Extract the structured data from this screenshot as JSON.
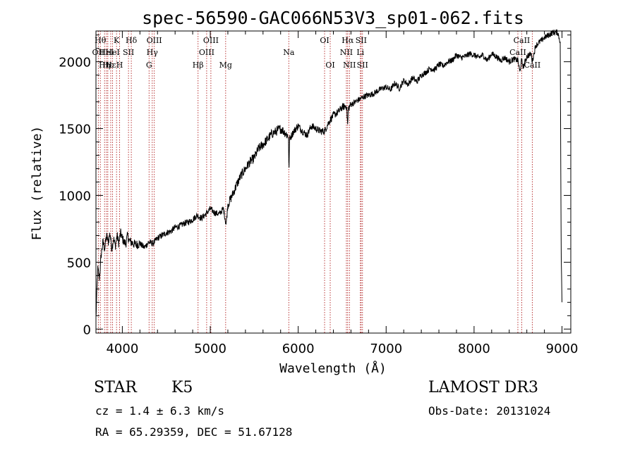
{
  "chart_data": {
    "type": "line",
    "title": "spec-56590-GAC066N53V3_sp01-062.fits",
    "xlabel": "Wavelength (Å)",
    "ylabel": "Flux (relative)",
    "xlim": [
      3700,
      9100
    ],
    "ylim": [
      -30,
      2230
    ],
    "xticks": [
      4000,
      5000,
      6000,
      7000,
      8000,
      9000
    ],
    "yticks": [
      0,
      500,
      1000,
      1500,
      2000
    ],
    "series": [
      {
        "name": "flux",
        "x": [
          3700,
          3720,
          3740,
          3760,
          3780,
          3800,
          3820,
          3840,
          3860,
          3880,
          3900,
          3920,
          3940,
          3960,
          3980,
          4000,
          4020,
          4040,
          4060,
          4080,
          4100,
          4150,
          4200,
          4250,
          4300,
          4350,
          4400,
          4450,
          4500,
          4550,
          4600,
          4650,
          4700,
          4750,
          4800,
          4850,
          4900,
          4950,
          5000,
          5050,
          5100,
          5150,
          5180,
          5200,
          5250,
          5300,
          5350,
          5400,
          5450,
          5500,
          5550,
          5600,
          5650,
          5700,
          5750,
          5800,
          5850,
          5890,
          5895,
          5900,
          5950,
          6000,
          6050,
          6100,
          6150,
          6200,
          6250,
          6300,
          6350,
          6400,
          6450,
          6500,
          6550,
          6563,
          6570,
          6600,
          6650,
          6700,
          6750,
          6800,
          6850,
          6900,
          6950,
          7000,
          7050,
          7100,
          7150,
          7200,
          7250,
          7300,
          7350,
          7400,
          7450,
          7500,
          7550,
          7600,
          7650,
          7700,
          7750,
          7800,
          7850,
          7900,
          7950,
          8000,
          8050,
          8100,
          8150,
          8200,
          8250,
          8300,
          8350,
          8400,
          8450,
          8500,
          8520,
          8540,
          8560,
          8600,
          8650,
          8662,
          8700,
          8750,
          8800,
          8850,
          8900,
          8950,
          8980,
          8990,
          9000
        ],
        "y": [
          80,
          450,
          380,
          560,
          650,
          600,
          700,
          650,
          720,
          600,
          680,
          620,
          700,
          640,
          720,
          680,
          650,
          640,
          700,
          660,
          650,
          630,
          640,
          610,
          650,
          640,
          680,
          700,
          720,
          730,
          760,
          770,
          790,
          800,
          820,
          850,
          830,
          860,
          900,
          870,
          860,
          900,
          780,
          930,
          1000,
          1080,
          1150,
          1200,
          1250,
          1280,
          1350,
          1380,
          1420,
          1460,
          1480,
          1500,
          1470,
          1440,
          1120,
          1420,
          1480,
          1520,
          1480,
          1450,
          1520,
          1500,
          1480,
          1480,
          1550,
          1600,
          1620,
          1660,
          1670,
          1520,
          1650,
          1680,
          1700,
          1720,
          1740,
          1750,
          1760,
          1780,
          1800,
          1810,
          1790,
          1840,
          1800,
          1860,
          1830,
          1880,
          1850,
          1900,
          1920,
          1950,
          1940,
          1980,
          1970,
          2000,
          2010,
          2050,
          2030,
          2040,
          2060,
          2050,
          2030,
          2050,
          2010,
          2060,
          2040,
          2010,
          2030,
          2000,
          2020,
          2010,
          1920,
          2010,
          1960,
          2040,
          2060,
          2000,
          2120,
          2150,
          2180,
          2200,
          2220,
          2220,
          2150,
          600,
          200
        ]
      }
    ],
    "lines": [
      {
        "x": 3727,
        "label": "OII",
        "row": 1
      },
      {
        "x": 3750,
        "label": "Hθ",
        "row": 0
      },
      {
        "x": 3798,
        "label": "Hη",
        "row": 2
      },
      {
        "x": 3820,
        "label": "HeI",
        "row": 1
      },
      {
        "x": 3835,
        "label": "Hε",
        "row": 2
      },
      {
        "x": 3868,
        "label": "Hε",
        "row": 2
      },
      {
        "x": 3889,
        "label": "HeI",
        "row": 1
      },
      {
        "x": 3934,
        "label": "K",
        "row": 0
      },
      {
        "x": 3969,
        "label": "H",
        "row": 2
      },
      {
        "x": 4070,
        "label": "SII",
        "row": 1
      },
      {
        "x": 4102,
        "label": "Hδ",
        "row": 0
      },
      {
        "x": 4304,
        "label": "G",
        "row": 2
      },
      {
        "x": 4340,
        "label": "Hγ",
        "row": 1
      },
      {
        "x": 4363,
        "label": "OIII",
        "row": 0
      },
      {
        "x": 4861,
        "label": "Hβ",
        "row": 2
      },
      {
        "x": 4959,
        "label": "OIII",
        "row": 1
      },
      {
        "x": 5007,
        "label": "OIII",
        "row": 0
      },
      {
        "x": 5175,
        "label": "Mg",
        "row": 2
      },
      {
        "x": 5893,
        "label": "Na",
        "row": 1
      },
      {
        "x": 6300,
        "label": "OI",
        "row": 0
      },
      {
        "x": 6364,
        "label": "OI",
        "row": 2
      },
      {
        "x": 6548,
        "label": "NII",
        "row": 1
      },
      {
        "x": 6563,
        "label": "Hα",
        "row": 0
      },
      {
        "x": 6583,
        "label": "NII",
        "row": 2
      },
      {
        "x": 6707,
        "label": "Li",
        "row": 1
      },
      {
        "x": 6716,
        "label": "SII",
        "row": 0
      },
      {
        "x": 6731,
        "label": "SII",
        "row": 2
      },
      {
        "x": 8498,
        "label": "CaII",
        "row": 1
      },
      {
        "x": 8542,
        "label": "CaII",
        "row": 0
      },
      {
        "x": 8662,
        "label": "CaII",
        "row": 2
      }
    ]
  },
  "footer": {
    "object_type": "STAR",
    "subclass": "K5",
    "survey": "LAMOST DR3",
    "redshift": "cz = 1.4 ± 6.3 km/s",
    "obs_date": "Obs-Date: 20131024",
    "coords": "RA =  65.29359, DEC =  51.67128"
  }
}
